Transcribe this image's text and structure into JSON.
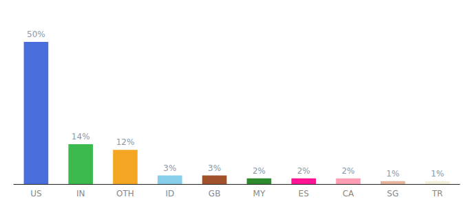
{
  "chart_data": {
    "type": "bar",
    "categories": [
      "US",
      "IN",
      "OTH",
      "ID",
      "GB",
      "MY",
      "ES",
      "CA",
      "SG",
      "TR"
    ],
    "values": [
      50,
      14,
      12,
      3,
      3,
      2,
      2,
      2,
      1,
      1
    ],
    "value_labels": [
      "50%",
      "14%",
      "12%",
      "3%",
      "3%",
      "2%",
      "2%",
      "2%",
      "1%",
      "1%"
    ],
    "colors": [
      "#4a6fdc",
      "#3dba4e",
      "#f5a623",
      "#87ceeb",
      "#a0522d",
      "#2d8a2d",
      "#ff1493",
      "#ff9eb5",
      "#e8b4a0",
      "#f5f0dc"
    ],
    "ylim": [
      0,
      58
    ],
    "data_labels": true,
    "tick_labels": "x",
    "grid": false
  }
}
